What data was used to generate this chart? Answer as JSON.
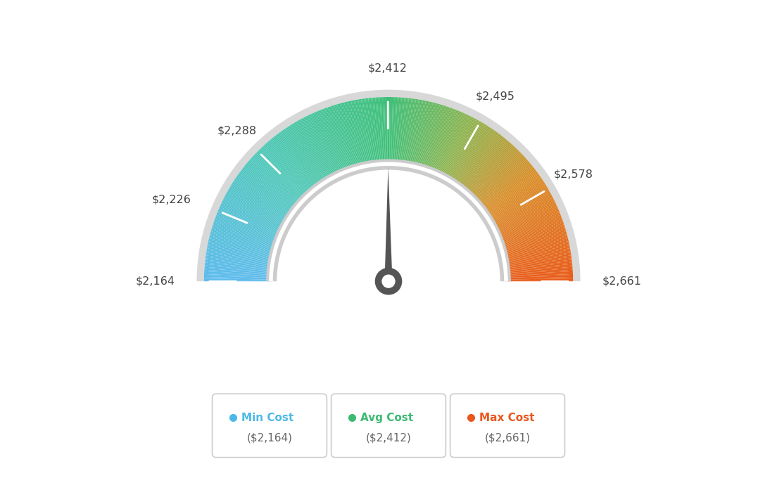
{
  "min_val": 2164,
  "avg_val": 2412,
  "max_val": 2661,
  "tick_labels": [
    "$2,164",
    "$2,226",
    "$2,288",
    "$2,412",
    "$2,495",
    "$2,578",
    "$2,661"
  ],
  "tick_values": [
    2164,
    2226,
    2288,
    2412,
    2495,
    2578,
    2661
  ],
  "legend": [
    {
      "label": "Min Cost",
      "sublabel": "($2,164)",
      "color": "#4db8e8"
    },
    {
      "label": "Avg Cost",
      "sublabel": "($2,412)",
      "color": "#3dba72"
    },
    {
      "label": "Max Cost",
      "sublabel": "($2,661)",
      "color": "#e8571e"
    }
  ],
  "background_color": "#ffffff",
  "needle_value": 2412,
  "color_stops": [
    [
      0.0,
      [
        0.36,
        0.73,
        0.93
      ]
    ],
    [
      0.25,
      [
        0.3,
        0.78,
        0.72
      ]
    ],
    [
      0.5,
      [
        0.24,
        0.75,
        0.47
      ]
    ],
    [
      0.65,
      [
        0.55,
        0.7,
        0.3
      ]
    ],
    [
      0.8,
      [
        0.85,
        0.55,
        0.15
      ]
    ],
    [
      1.0,
      [
        0.91,
        0.35,
        0.09
      ]
    ]
  ]
}
